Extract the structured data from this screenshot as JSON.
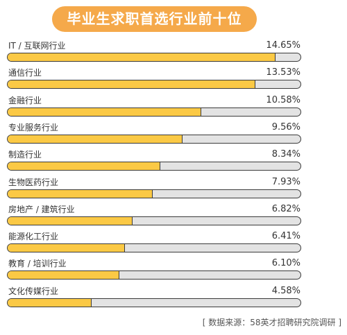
{
  "chart_data": {
    "type": "bar",
    "title": "毕业生求职首选行业前十位",
    "categories": [
      "IT / 互联网行业",
      "通信行业",
      "金融行业",
      "专业服务行业",
      "制造行业",
      "生物医药行业",
      "房地产 / 建筑行业",
      "能源化工行业",
      "教育 / 培训行业",
      "文化传媒行业"
    ],
    "values": [
      14.65,
      13.53,
      10.58,
      9.56,
      8.34,
      7.93,
      6.82,
      6.41,
      6.1,
      4.58
    ],
    "value_labels": [
      "14.65%",
      "13.53%",
      "10.58%",
      "9.56%",
      "8.34%",
      "7.93%",
      "6.82%",
      "6.41%",
      "6.10%",
      "4.58%"
    ],
    "xlim": [
      0,
      16
    ],
    "orientation": "horizontal",
    "grid": false
  },
  "source_note": "[ 数据来源：58英才招聘研究院调研 ]",
  "colors": {
    "title_bg": "#f5a94a",
    "bar_fill": "#fbc945",
    "bar_track": "#e3e3e3",
    "bar_border": "#3a3a3a"
  }
}
